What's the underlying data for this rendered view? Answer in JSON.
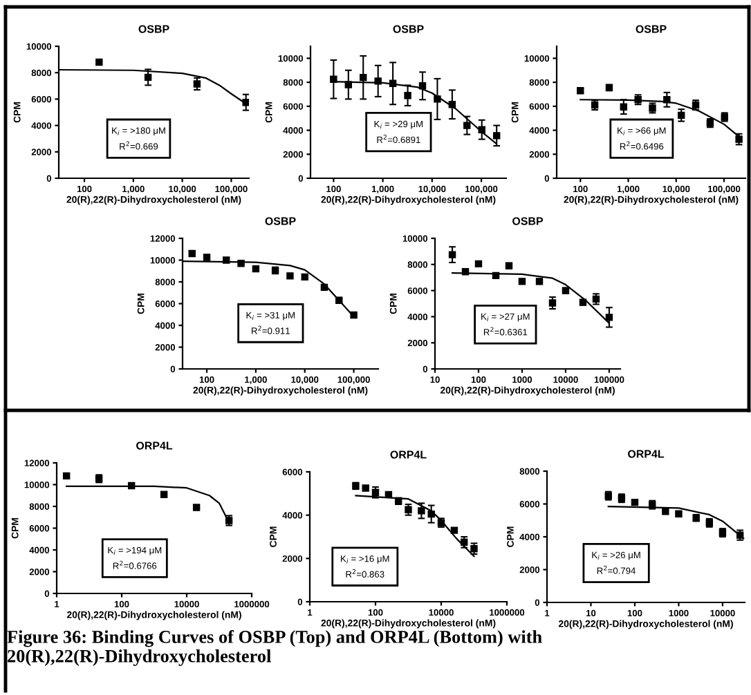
{
  "chart_data": [
    {
      "type": "scatter",
      "title": "OSBP",
      "xlabel": "20(R),22(R)-Dihydroxycholesterol (nM)",
      "ylabel": "CPM",
      "log": "x",
      "xlim": [
        30,
        230000
      ],
      "ylim": [
        0,
        10000
      ],
      "xticks": [
        100,
        {
          "value": 1000,
          "label": "1,000"
        },
        {
          "value": 10000,
          "label": "10,000"
        },
        {
          "value": 100000,
          "label": "100,000"
        }
      ],
      "yticks": [
        0,
        2000,
        4000,
        6000,
        8000,
        10000
      ],
      "annotations": [
        "K$_{i}$ = >180 μM",
        "R$^{2}$=0.669"
      ],
      "series": [
        {
          "color": "#000000",
          "marker": "square",
          "x": [
            200,
            2000,
            20000,
            200000
          ],
          "values": [
            8800,
            7650,
            7150,
            5750
          ],
          "errors": [
            null,
            600,
            450,
            600
          ]
        },
        {
          "type": "line",
          "color": "#000000",
          "marker": "none",
          "line_style": "solid",
          "x": [
            30,
            1000,
            10000,
            30000,
            60000,
            100000,
            200000
          ],
          "values": [
            8220,
            8180,
            7950,
            7600,
            7000,
            6400,
            5650
          ]
        }
      ]
    },
    {
      "type": "scatter",
      "title": "OSBP",
      "xlabel": "20(R),22(R)-Dihydroxycholesterol (nM)",
      "ylabel": "CPM",
      "log": "x",
      "xlim": [
        34,
        320000
      ],
      "ylim": [
        0,
        11000
      ],
      "xticks": [
        100,
        {
          "value": 1000,
          "label": "1,000"
        },
        {
          "value": 10000,
          "label": "10,000"
        },
        {
          "value": 100000,
          "label": "100,000"
        }
      ],
      "yticks": [
        0,
        2000,
        4000,
        6000,
        8000,
        10000
      ],
      "annotations": [
        "K$_{i}$ = >29 μM",
        "R$^{2}$=0.6891"
      ],
      "series": [
        {
          "color": "#000000",
          "marker": "square",
          "x": [
            100,
            200,
            400,
            800,
            1600,
            3200,
            6400,
            12800,
            25600,
            51200,
            102400,
            204800
          ],
          "values": [
            8250,
            7800,
            8400,
            8100,
            7900,
            6900,
            7700,
            6600,
            6150,
            4400,
            4050,
            3550
          ],
          "errors": [
            1600,
            1200,
            1800,
            1300,
            1750,
            850,
            1150,
            1700,
            1200,
            750,
            800,
            850
          ]
        },
        {
          "type": "line",
          "color": "#000000",
          "marker": "none",
          "line_style": "solid",
          "x": [
            100,
            1000,
            5000,
            10000,
            30000,
            100000,
            200000
          ],
          "values": [
            8050,
            7950,
            7600,
            7100,
            5800,
            3900,
            2900
          ]
        }
      ]
    },
    {
      "type": "scatter",
      "title": "OSBP",
      "xlabel": "20(R),22(R)-Dihydroxycholesterol (nM)",
      "ylabel": "CPM",
      "log": "x",
      "xlim": [
        32,
        280000
      ],
      "ylim": [
        0,
        11000
      ],
      "xticks": [
        100,
        {
          "value": 1000,
          "label": "1,000"
        },
        {
          "value": 10000,
          "label": "10,000"
        },
        {
          "value": 100000,
          "label": "100,000"
        }
      ],
      "yticks": [
        0,
        2000,
        4000,
        6000,
        8000,
        10000
      ],
      "annotations": [
        "K$_{i}$ = >66 μM",
        "R$^{2}$=0.6496"
      ],
      "series": [
        {
          "color": "#000000",
          "marker": "square",
          "x": [
            100,
            200,
            400,
            800,
            1600,
            3200,
            6400,
            12800,
            25600,
            51200,
            102400,
            204800
          ],
          "values": [
            7300,
            6100,
            7550,
            5950,
            6550,
            5850,
            6550,
            5250,
            6100,
            4600,
            5100,
            3250
          ],
          "errors": [
            150,
            400,
            250,
            600,
            400,
            400,
            600,
            500,
            400,
            350,
            350,
            450
          ]
        },
        {
          "type": "line",
          "color": "#000000",
          "marker": "none",
          "line_style": "solid",
          "x": [
            100,
            1000,
            5000,
            10000,
            30000,
            100000,
            200000
          ],
          "values": [
            6550,
            6520,
            6400,
            6250,
            5600,
            4500,
            3500
          ]
        }
      ]
    },
    {
      "type": "scatter",
      "title": "OSBP",
      "xlabel": "20(R),22(R)-Dihydroxycholesterol (nM)",
      "ylabel": "CPM",
      "log": "x",
      "xlim": [
        32,
        316000
      ],
      "ylim": [
        0,
        12000
      ],
      "xticks": [
        100,
        {
          "value": 1000,
          "label": "1,000"
        },
        {
          "value": 10000,
          "label": "10,000"
        },
        {
          "value": 100000,
          "label": "100,000"
        }
      ],
      "yticks": [
        0,
        2000,
        4000,
        6000,
        8000,
        10000,
        12000
      ],
      "annotations": [
        "K$_{i}$ = >31 μM",
        "R$^{2}$=0.911"
      ],
      "series": [
        {
          "color": "#000000",
          "marker": "square",
          "x": [
            50,
            100,
            250,
            500,
            1000,
            2500,
            5000,
            10000,
            25000,
            50000,
            100000
          ],
          "values": [
            10600,
            10250,
            10000,
            9700,
            9200,
            9050,
            8550,
            8450,
            7500,
            6300,
            4950
          ],
          "errors": [
            250,
            200,
            200,
            null,
            null,
            300,
            null,
            null,
            null,
            250,
            null
          ]
        },
        {
          "type": "line",
          "color": "#000000",
          "marker": "none",
          "line_style": "solid",
          "x": [
            32,
            1000,
            5000,
            10000,
            25000,
            50000,
            100000
          ],
          "values": [
            9900,
            9800,
            9500,
            9100,
            7800,
            6300,
            4800
          ]
        }
      ]
    },
    {
      "type": "scatter",
      "title": "OSBP",
      "xlabel": "20(R),22(R)-Dihydroxycholesterol (nM)",
      "ylabel": "CPM",
      "log": "x",
      "xlim": [
        10,
        180000
      ],
      "ylim": [
        0,
        10000
      ],
      "xticks": [
        10,
        100,
        1000,
        10000,
        100000
      ],
      "yticks": [
        0,
        2000,
        4000,
        6000,
        8000,
        10000
      ],
      "annotations": [
        "K$_{i}$ = >27 μM",
        "R$^{2}$=0.6361"
      ],
      "series": [
        {
          "color": "#000000",
          "marker": "square",
          "x": [
            25,
            50,
            100,
            250,
            500,
            1000,
            2500,
            5000,
            10000,
            25000,
            50000,
            100000
          ],
          "values": [
            8750,
            7450,
            8050,
            7150,
            7900,
            6700,
            6700,
            5050,
            6000,
            5100,
            5350,
            3950
          ],
          "errors": [
            600,
            200,
            null,
            null,
            200,
            null,
            200,
            450,
            200,
            200,
            400,
            750
          ]
        },
        {
          "type": "line",
          "color": "#000000",
          "marker": "none",
          "line_style": "solid",
          "x": [
            25,
            1000,
            5000,
            10000,
            30000,
            100000
          ],
          "values": [
            7350,
            7250,
            6950,
            6450,
            5200,
            3500
          ]
        }
      ]
    },
    {
      "type": "scatter",
      "title": "ORP4L",
      "xlabel": "20(R),22(R)-Dihydroxycholesterol (nM)",
      "ylabel": "CPM",
      "log": "x",
      "xlim": [
        1,
        1000000
      ],
      "ylim": [
        0,
        12000
      ],
      "xticks": [
        1,
        100,
        10000,
        1000000
      ],
      "yticks": [
        0,
        2000,
        4000,
        6000,
        8000,
        10000,
        12000
      ],
      "annotations": [
        "K$_{i}$ = >194 μM",
        "R$^{2}$=0.6766"
      ],
      "series": [
        {
          "color": "#000000",
          "marker": "square",
          "x": [
            2,
            20,
            200,
            2000,
            20000,
            200000
          ],
          "values": [
            10800,
            10550,
            9900,
            9100,
            7900,
            6700
          ],
          "errors": [
            250,
            350,
            null,
            null,
            null,
            450
          ]
        },
        {
          "type": "line",
          "color": "#000000",
          "marker": "none",
          "line_style": "solid",
          "x": [
            2,
            1000,
            10000,
            50000,
            100000,
            200000
          ],
          "values": [
            9850,
            9850,
            9700,
            9000,
            8300,
            6500
          ]
        }
      ]
    },
    {
      "type": "scatter",
      "title": "ORP4L",
      "xlabel": "20(R),22(R)-Dihydroxycholesterol (nM)",
      "ylabel": "CPM",
      "log": "x",
      "xlim": [
        1,
        1000000
      ],
      "ylim": [
        0,
        6000
      ],
      "xticks": [
        1,
        100,
        10000,
        1000000
      ],
      "yticks": [
        0,
        2000,
        4000,
        6000
      ],
      "annotations": [
        "K$_{i}$ = >16 μM",
        "R$^{2}$=0.863"
      ],
      "series": [
        {
          "color": "#000000",
          "marker": "square",
          "x": [
            25,
            50,
            100,
            250,
            500,
            1000,
            2500,
            5000,
            10000,
            25000,
            50000,
            100000
          ],
          "values": [
            5350,
            5250,
            5050,
            4950,
            4650,
            4250,
            4200,
            4050,
            3650,
            3300,
            2750,
            2450
          ],
          "errors": [
            150,
            null,
            250,
            null,
            150,
            250,
            350,
            400,
            200,
            100,
            250,
            250
          ]
        },
        {
          "type": "line",
          "color": "#000000",
          "marker": "none",
          "line_style": "solid",
          "x": [
            25,
            1000,
            5000,
            10000,
            30000,
            100000
          ],
          "values": [
            4900,
            4750,
            4200,
            3750,
            2900,
            2100
          ]
        }
      ]
    },
    {
      "type": "scatter",
      "title": "ORP4L",
      "xlabel": "20(R),22(R)-Dihydroxycholesterol (nM)",
      "ylabel": "CPM",
      "log": "x",
      "xlim": [
        1,
        32000
      ],
      "ylim": [
        0,
        8000
      ],
      "xticks": [
        1,
        10,
        100,
        1000,
        10000
      ],
      "yticks": [
        0,
        2000,
        4000,
        6000,
        8000
      ],
      "annotations": [
        "K$_{i}$ = >26 μM",
        "R$^{2}$=0.794",
        "Figure 36: Binding Curves of OSBP (Top) and ORP4L (Bottom) with 20(R),22(R)-Dihydroxycholesterol"
      ],
      "series": [
        {
          "color": "#000000",
          "marker": "square",
          "x": [
            25,
            50,
            100,
            250,
            500,
            1000,
            2500,
            5000,
            10000,
            25000
          ],
          "values": [
            6500,
            6350,
            6100,
            5950,
            5550,
            5400,
            5150,
            4850,
            4250,
            4100
          ],
          "errors": [
            250,
            250,
            null,
            250,
            null,
            null,
            200,
            250,
            250,
            300
          ]
        },
        {
          "type": "line",
          "color": "#000000",
          "marker": "none",
          "line_style": "solid",
          "x": [
            25,
            1000,
            5000,
            10000,
            30000
          ],
          "values": [
            5850,
            5750,
            5350,
            4950,
            3900
          ]
        }
      ]
    }
  ]
}
